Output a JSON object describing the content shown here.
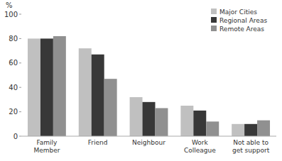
{
  "chart_data": {
    "type": "bar",
    "y_label": "%",
    "categories": [
      "Family\nMember",
      "Friend",
      "Neighbour",
      "Work\nColleague",
      "Not able to\nget support"
    ],
    "series": [
      {
        "name": "Major Cities",
        "color": "#c0c0c0",
        "values": [
          80,
          72,
          32,
          25,
          10
        ]
      },
      {
        "name": "Regional Areas",
        "color": "#383838",
        "values": [
          80,
          67,
          28,
          21,
          10
        ]
      },
      {
        "name": "Remote Areas",
        "color": "#909090",
        "values": [
          82,
          47,
          23,
          12,
          13
        ]
      }
    ],
    "ylim": [
      0,
      100
    ],
    "yticks": [
      0,
      20,
      40,
      60,
      80,
      100
    ],
    "legend": "upper right"
  }
}
